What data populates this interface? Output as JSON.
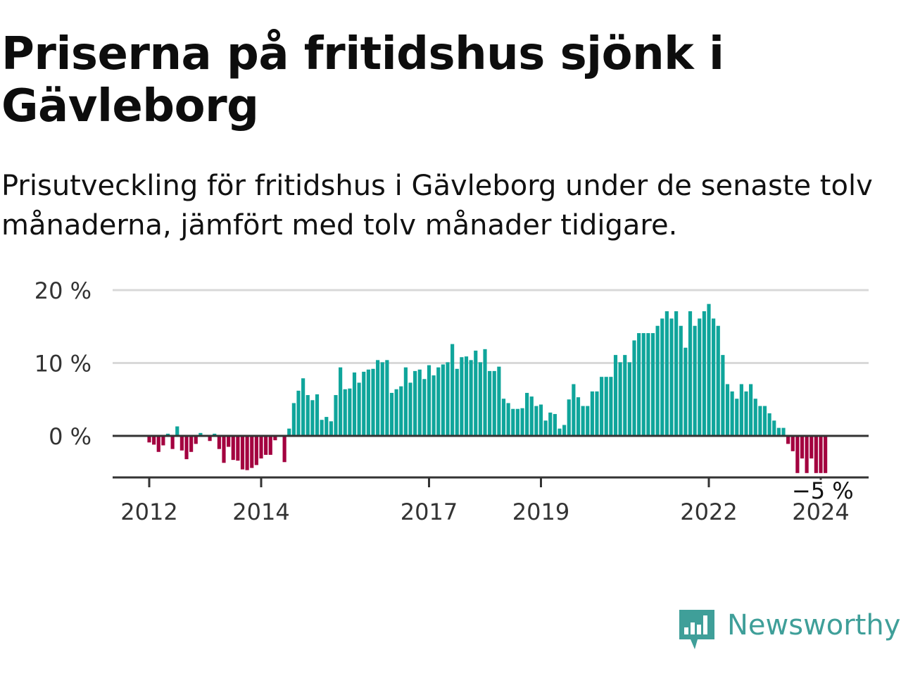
{
  "header": {
    "title": "Priserna på fritidshus sjönk i Gävleborg",
    "subtitle": "Prisutveckling för fritidshus i Gävleborg under de senaste tolv månaderna, jämfört med tolv månader tidigare."
  },
  "brand": {
    "name": "Newsworthy",
    "icon": "newsworthy-logo-icon",
    "color": "#3f9f99"
  },
  "colors": {
    "positive": "#0fa59b",
    "negative": "#a3003f",
    "grid": "#d9d9d9",
    "axis": "#333333",
    "text": "#333333"
  },
  "chart_data": {
    "type": "bar",
    "unit": "%",
    "ylim": [
      -5,
      20
    ],
    "yticks": [
      0,
      10,
      20
    ],
    "ytick_labels": [
      "0 %",
      "10 %",
      "20 %"
    ],
    "grid": true,
    "xtick_labels": [
      "2012",
      "2014",
      "2017",
      "2019",
      "2022",
      "2024"
    ],
    "last_value_label": "−5 %",
    "start": "2011-06",
    "end": "2024-04",
    "values": [
      0,
      0,
      0,
      0,
      0,
      0,
      0,
      -0.9,
      -1.2,
      -2.2,
      -1.3,
      0.3,
      -1.8,
      1.3,
      -2.0,
      -3.2,
      -2.2,
      -1.1,
      0.4,
      0,
      -0.7,
      0.3,
      -1.8,
      -3.7,
      -1.5,
      -3.3,
      -3.4,
      -4.6,
      -4.7,
      -4.4,
      -4.0,
      -3.1,
      -2.6,
      -2.6,
      -0.6,
      0,
      -3.6,
      1.0,
      4.5,
      6.2,
      7.9,
      5.6,
      4.9,
      5.7,
      2.2,
      2.6,
      2.0,
      5.6,
      9.4,
      6.4,
      6.5,
      8.7,
      7.3,
      8.8,
      9.1,
      9.2,
      10.4,
      10.1,
      10.4,
      5.9,
      6.4,
      6.8,
      9.4,
      7.3,
      8.9,
      9.1,
      7.8,
      9.7,
      8.3,
      9.4,
      9.8,
      10.1,
      12.6,
      9.2,
      10.8,
      10.9,
      10.4,
      11.7,
      10.1,
      11.9,
      8.9,
      8.9,
      9.5,
      5.1,
      4.5,
      3.7,
      3.7,
      3.8,
      5.9,
      5.4,
      4.1,
      4.3,
      2.1,
      3.2,
      3.0,
      1.0,
      1.5,
      5.0,
      7.1,
      5.3,
      4.1,
      4.1,
      6.1,
      6.1,
      8.1,
      8.1,
      8.1,
      11.1,
      10.1,
      11.1,
      10.1,
      13.1,
      14.1,
      14.1,
      14.1,
      14.1,
      15.1,
      16.1,
      17.1,
      16.1,
      17.1,
      15.1,
      12.1,
      17.1,
      15.1,
      16.1,
      17.1,
      18.1,
      16.1,
      15.1,
      11.1,
      7.1,
      6.1,
      5.1,
      7.1,
      6.1,
      7.1,
      5.1,
      4.1,
      4.1,
      3.1,
      2.1,
      1.1,
      1.1,
      -1.1,
      -2.1,
      -5.1,
      -3.1,
      -5.1,
      -3.1,
      -5.1,
      -5.1,
      -5.1
    ]
  }
}
